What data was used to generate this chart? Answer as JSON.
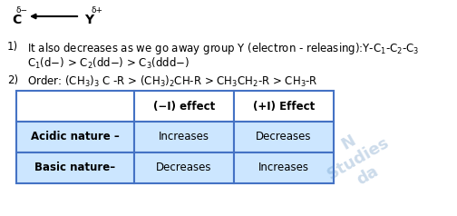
{
  "bg_color": "#ffffff",
  "text_color": "#000000",
  "blue_color": "#1e4da1",
  "line1_num": "1)",
  "line1_text": "It also decreases as we go away group Y (electron - releasing):Y-C$_1$-C$_2$-C$_3$",
  "line2_text": "C$_1$(d−) > C$_2$(dd−) > C$_3$(ddd−)",
  "line3_num": "2)",
  "line3_text": "Order: (CH$_3$)$_3$ C -R > (CH$_3$)$_2$CH-R > CH$_3$CH$_2$-R > CH$_3$-R",
  "table_header": [
    "",
    "(−I) effect",
    "(+I) Effect"
  ],
  "table_row1": [
    "Acidic nature –",
    "Increases",
    "Decreases"
  ],
  "table_row2": [
    "Basic nature–",
    "Decreases",
    "Increases"
  ],
  "table_header_bg": "#ffffff",
  "table_row_bg": "#cce6ff",
  "table_border_color": "#4472c4",
  "font_size_body": 8.5,
  "font_size_arrow": 10,
  "font_size_super": 6.5,
  "font_size_table_header": 8.5,
  "font_size_table_body": 8.5
}
